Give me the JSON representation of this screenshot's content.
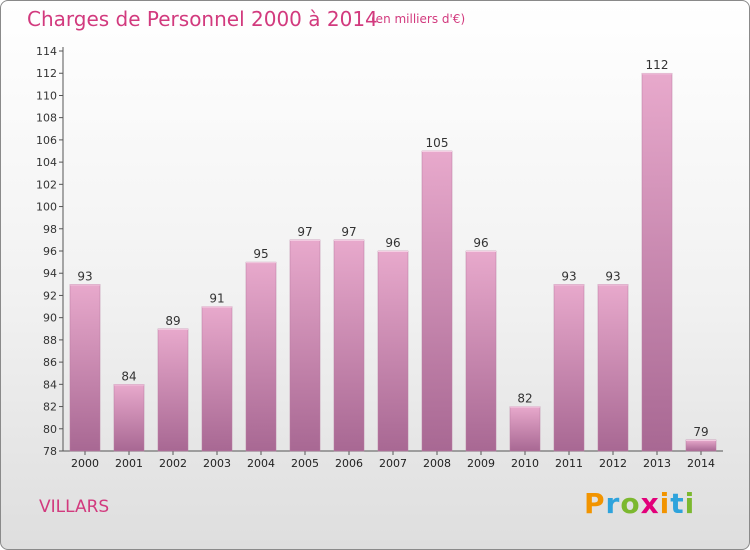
{
  "header": {
    "title": "Charges de Personnel 2000 à 2014",
    "subtitle": "(en milliers d'€)"
  },
  "footer": {
    "place": "VILLARS",
    "logo": "Proxiti",
    "logo_letters": [
      "P",
      "r",
      "o",
      "x",
      "i",
      "t",
      "i"
    ],
    "logo_colors": [
      "#f29400",
      "#2ea3dc",
      "#7cb82f",
      "#e2007a",
      "#f29400",
      "#2ea3dc",
      "#7cb82f"
    ]
  },
  "colors": {
    "title": "#d23a7e",
    "bar_top": "#e8a9cc",
    "bar_bottom": "#a86893"
  },
  "chart_data": {
    "type": "bar",
    "title": "Charges de Personnel 2000 à 2014",
    "subtitle": "(en milliers d'€)",
    "xlabel": "",
    "ylabel": "",
    "categories": [
      "2000",
      "2001",
      "2002",
      "2003",
      "2004",
      "2005",
      "2006",
      "2007",
      "2008",
      "2009",
      "2010",
      "2011",
      "2012",
      "2013",
      "2014"
    ],
    "values": [
      93,
      84,
      89,
      91,
      95,
      97,
      97,
      96,
      105,
      96,
      82,
      93,
      93,
      112,
      79
    ],
    "ylim": [
      78,
      114
    ],
    "yticks": [
      78,
      80,
      82,
      84,
      86,
      88,
      90,
      92,
      94,
      96,
      98,
      100,
      102,
      104,
      106,
      108,
      110,
      112,
      114
    ],
    "grid": false,
    "legend": "none"
  }
}
